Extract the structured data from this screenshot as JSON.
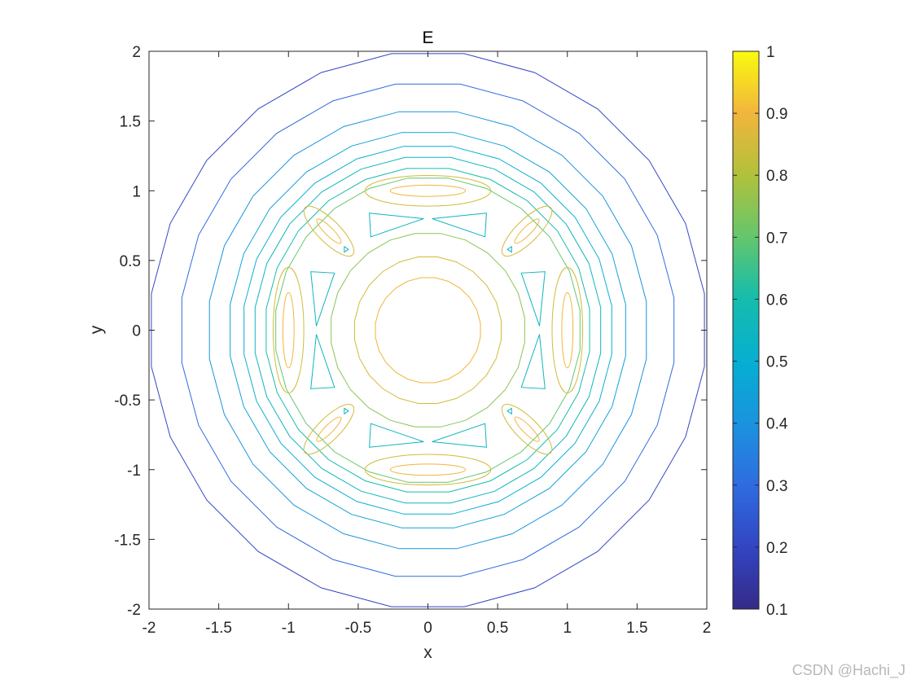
{
  "chart_data": {
    "type": "contour",
    "title": "E",
    "xlabel": "x",
    "ylabel": "y",
    "xlim": [
      -2,
      2
    ],
    "ylim": [
      -2,
      2
    ],
    "xticks": [
      "-2",
      "-1.5",
      "-1",
      "-0.5",
      "0",
      "0.5",
      "1",
      "1.5",
      "2"
    ],
    "yticks": [
      "2",
      "1.5",
      "1",
      "0.5",
      "0",
      "-0.5",
      "-1",
      "-1.5",
      "-2"
    ],
    "colorbar": {
      "range": [
        0.1,
        1
      ],
      "ticks": [
        "1",
        "0.9",
        "0.8",
        "0.7",
        "0.6",
        "0.5",
        "0.4",
        "0.3",
        "0.2",
        "0.1"
      ],
      "colormap": "parula"
    },
    "levels": [
      {
        "value": 0.2,
        "radius": 2.0
      },
      {
        "value": 0.3,
        "radius": 1.78
      },
      {
        "value": 0.4,
        "radius": 1.58
      },
      {
        "value": 0.45,
        "radius": 1.43
      },
      {
        "value": 0.5,
        "radius": 1.33
      },
      {
        "value": 0.55,
        "radius": 1.25
      },
      {
        "value": 0.6,
        "radius": 1.17
      },
      {
        "value": 0.7,
        "radius": 1.1
      },
      {
        "value": 0.75,
        "radius": 0.7
      },
      {
        "value": 0.85,
        "radius": 0.53
      },
      {
        "value": 0.9,
        "radius": 0.38
      }
    ],
    "islands": [
      {
        "value": 0.85,
        "cx": 0,
        "cy": 1.0,
        "rx": 0.45,
        "ry": 0.11
      },
      {
        "value": 0.9,
        "cx": 0,
        "cy": 1.0,
        "rx": 0.27,
        "ry": 0.04
      },
      {
        "value": 0.85,
        "cx": 0,
        "cy": -1.0,
        "rx": 0.45,
        "ry": 0.11
      },
      {
        "value": 0.9,
        "cx": 0,
        "cy": -1.0,
        "rx": 0.27,
        "ry": 0.04
      },
      {
        "value": 0.85,
        "cx": 1.0,
        "cy": 0,
        "rx": 0.11,
        "ry": 0.45
      },
      {
        "value": 0.9,
        "cx": 1.0,
        "cy": 0,
        "rx": 0.04,
        "ry": 0.27
      },
      {
        "value": 0.85,
        "cx": -1.0,
        "cy": 0,
        "rx": 0.11,
        "ry": 0.45
      },
      {
        "value": 0.9,
        "cx": -1.0,
        "cy": 0,
        "rx": 0.04,
        "ry": 0.27
      },
      {
        "value": 0.85,
        "cx": 0.71,
        "cy": 0.71,
        "rx": 0.24,
        "ry": 0.08,
        "angle": -45
      },
      {
        "value": 0.9,
        "cx": 0.71,
        "cy": 0.71,
        "rx": 0.12,
        "ry": 0.03,
        "angle": -45
      },
      {
        "value": 0.85,
        "cx": -0.71,
        "cy": 0.71,
        "rx": 0.24,
        "ry": 0.08,
        "angle": 45
      },
      {
        "value": 0.9,
        "cx": -0.71,
        "cy": 0.71,
        "rx": 0.12,
        "ry": 0.03,
        "angle": 45
      },
      {
        "value": 0.85,
        "cx": 0.71,
        "cy": -0.71,
        "rx": 0.24,
        "ry": 0.08,
        "angle": 45
      },
      {
        "value": 0.9,
        "cx": 0.71,
        "cy": -0.71,
        "rx": 0.12,
        "ry": 0.03,
        "angle": 45
      },
      {
        "value": 0.85,
        "cx": -0.71,
        "cy": -0.71,
        "rx": 0.24,
        "ry": 0.08,
        "angle": -45
      },
      {
        "value": 0.9,
        "cx": -0.71,
        "cy": -0.71,
        "rx": 0.12,
        "ry": 0.03,
        "angle": -45
      }
    ],
    "valleys": [
      {
        "value": 0.55,
        "x": [
          -0.42,
          -0.03,
          -0.41
        ],
        "y": [
          0.84,
          0.8,
          0.67
        ]
      },
      {
        "value": 0.55,
        "x": [
          0.42,
          0.03,
          0.41
        ],
        "y": [
          0.84,
          0.8,
          0.67
        ]
      },
      {
        "value": 0.55,
        "x": [
          -0.42,
          -0.03,
          -0.41
        ],
        "y": [
          -0.84,
          -0.8,
          -0.67
        ]
      },
      {
        "value": 0.55,
        "x": [
          0.42,
          0.03,
          0.41
        ],
        "y": [
          -0.84,
          -0.8,
          -0.67
        ]
      },
      {
        "value": 0.55,
        "x": [
          0.84,
          0.8,
          0.67
        ],
        "y": [
          0.42,
          0.03,
          0.41
        ]
      },
      {
        "value": 0.55,
        "x": [
          -0.84,
          -0.8,
          -0.67
        ],
        "y": [
          0.42,
          0.03,
          0.41
        ]
      },
      {
        "value": 0.55,
        "x": [
          0.84,
          0.8,
          0.67
        ],
        "y": [
          -0.42,
          -0.03,
          -0.41
        ]
      },
      {
        "value": 0.55,
        "x": [
          -0.84,
          -0.8,
          -0.67
        ],
        "y": [
          -0.42,
          -0.03,
          -0.41
        ]
      },
      {
        "value": 0.55,
        "x": [
          -0.6,
          -0.6,
          -0.57
        ],
        "y": [
          0.6,
          0.56,
          0.58
        ]
      },
      {
        "value": 0.55,
        "x": [
          0.6,
          0.6,
          0.57
        ],
        "y": [
          0.6,
          0.56,
          0.58
        ]
      },
      {
        "value": 0.55,
        "x": [
          -0.6,
          -0.6,
          -0.57
        ],
        "y": [
          -0.6,
          -0.56,
          -0.58
        ]
      },
      {
        "value": 0.55,
        "x": [
          0.6,
          0.6,
          0.57
        ],
        "y": [
          -0.6,
          -0.56,
          -0.58
        ]
      }
    ]
  },
  "watermark": "CSDN @Hachi_J"
}
